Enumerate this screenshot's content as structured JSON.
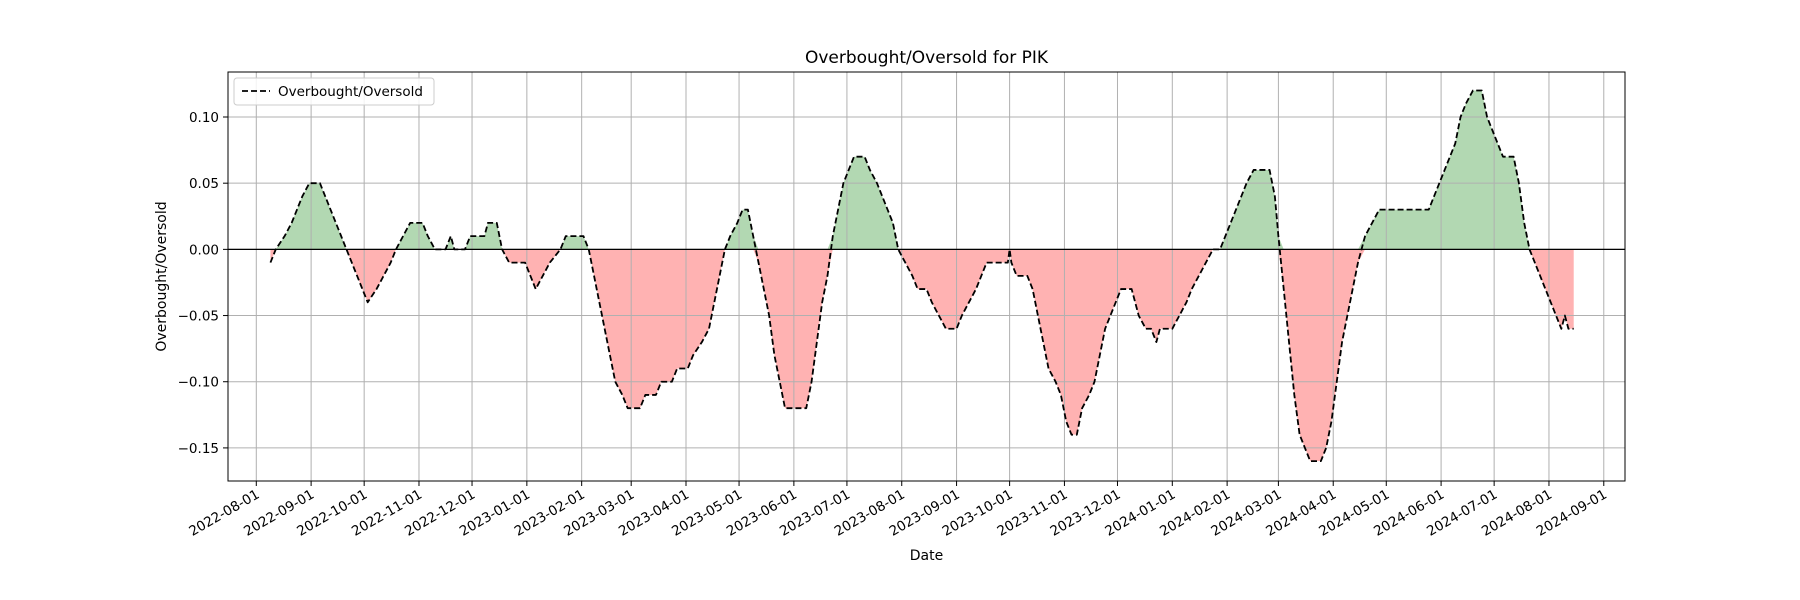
{
  "chart_data": {
    "type": "area",
    "title": "Overbought/Oversold for PIK",
    "xlabel": "Date",
    "ylabel": "Overbought/Oversold",
    "x_axis": "date",
    "xlim": [
      "2022-07-16",
      "2024-09-13"
    ],
    "ylim": [
      -0.175,
      0.134
    ],
    "grid": true,
    "legend_placement": "top-left",
    "x_ticks": [
      "2022-08-01",
      "2022-09-01",
      "2022-10-01",
      "2022-11-01",
      "2022-12-01",
      "2023-01-01",
      "2023-02-01",
      "2023-03-01",
      "2023-04-01",
      "2023-05-01",
      "2023-06-01",
      "2023-07-01",
      "2023-08-01",
      "2023-09-01",
      "2023-10-01",
      "2023-11-01",
      "2023-12-01",
      "2024-01-01",
      "2024-02-01",
      "2024-03-01",
      "2024-04-01",
      "2024-05-01",
      "2024-06-01",
      "2024-07-01",
      "2024-08-01",
      "2024-09-01"
    ],
    "y_ticks": [
      {
        "value": 0.1,
        "label": "0.10"
      },
      {
        "value": 0.05,
        "label": "0.05"
      },
      {
        "value": 0.0,
        "label": "0.00"
      },
      {
        "value": -0.05,
        "label": "−0.05"
      },
      {
        "value": -0.1,
        "label": "−0.10"
      },
      {
        "value": -0.15,
        "label": "−0.15"
      }
    ],
    "colors": {
      "line": "#000000",
      "positive_fill": "#b2d8b2",
      "negative_fill": "#ffb2b2",
      "grid": "#b0b0b0",
      "zero_line": "#000000"
    },
    "series": [
      {
        "name": "Overbought/Oversold",
        "style": "dashed",
        "points": [
          [
            "2022-08-09",
            -0.01
          ],
          [
            "2022-08-12",
            0.0
          ],
          [
            "2022-08-17",
            0.01
          ],
          [
            "2022-08-21",
            0.02
          ],
          [
            "2022-08-24",
            0.03
          ],
          [
            "2022-08-27",
            0.04
          ],
          [
            "2022-08-31",
            0.05
          ],
          [
            "2022-09-06",
            0.05
          ],
          [
            "2022-09-09",
            0.04
          ],
          [
            "2022-09-12",
            0.03
          ],
          [
            "2022-09-15",
            0.02
          ],
          [
            "2022-09-18",
            0.01
          ],
          [
            "2022-09-21",
            0.0
          ],
          [
            "2022-09-24",
            -0.01
          ],
          [
            "2022-09-27",
            -0.02
          ],
          [
            "2022-09-30",
            -0.03
          ],
          [
            "2022-10-03",
            -0.04
          ],
          [
            "2022-10-08",
            -0.03
          ],
          [
            "2022-10-12",
            -0.02
          ],
          [
            "2022-10-16",
            -0.01
          ],
          [
            "2022-10-19",
            0.0
          ],
          [
            "2022-10-23",
            0.01
          ],
          [
            "2022-10-27",
            0.02
          ],
          [
            "2022-11-03",
            0.02
          ],
          [
            "2022-11-06",
            0.01
          ],
          [
            "2022-11-10",
            0.0
          ],
          [
            "2022-11-16",
            0.0
          ],
          [
            "2022-11-19",
            0.01
          ],
          [
            "2022-11-21",
            0.0
          ],
          [
            "2022-11-27",
            0.0
          ],
          [
            "2022-11-30",
            0.01
          ],
          [
            "2022-12-08",
            0.01
          ],
          [
            "2022-12-10",
            0.02
          ],
          [
            "2022-12-15",
            0.02
          ],
          [
            "2022-12-18",
            0.0
          ],
          [
            "2022-12-22",
            -0.01
          ],
          [
            "2022-12-31",
            -0.01
          ],
          [
            "2023-01-03",
            -0.02
          ],
          [
            "2023-01-06",
            -0.03
          ],
          [
            "2023-01-10",
            -0.02
          ],
          [
            "2023-01-14",
            -0.01
          ],
          [
            "2023-01-20",
            0.0
          ],
          [
            "2023-01-23",
            0.01
          ],
          [
            "2023-02-02",
            0.01
          ],
          [
            "2023-02-05",
            0.0
          ],
          [
            "2023-02-08",
            -0.02
          ],
          [
            "2023-02-11",
            -0.04
          ],
          [
            "2023-02-14",
            -0.06
          ],
          [
            "2023-02-17",
            -0.08
          ],
          [
            "2023-02-20",
            -0.1
          ],
          [
            "2023-02-24",
            -0.11
          ],
          [
            "2023-02-27",
            -0.12
          ],
          [
            "2023-03-06",
            -0.12
          ],
          [
            "2023-03-09",
            -0.11
          ],
          [
            "2023-03-15",
            -0.11
          ],
          [
            "2023-03-18",
            -0.1
          ],
          [
            "2023-03-24",
            -0.1
          ],
          [
            "2023-03-27",
            -0.09
          ],
          [
            "2023-04-02",
            -0.09
          ],
          [
            "2023-04-05",
            -0.08
          ],
          [
            "2023-04-10",
            -0.07
          ],
          [
            "2023-04-14",
            -0.06
          ],
          [
            "2023-04-17",
            -0.04
          ],
          [
            "2023-04-20",
            -0.02
          ],
          [
            "2023-04-23",
            0.0
          ],
          [
            "2023-04-26",
            0.01
          ],
          [
            "2023-04-30",
            0.02
          ],
          [
            "2023-05-03",
            0.03
          ],
          [
            "2023-05-06",
            0.03
          ],
          [
            "2023-05-09",
            0.01
          ],
          [
            "2023-05-12",
            -0.01
          ],
          [
            "2023-05-15",
            -0.03
          ],
          [
            "2023-05-18",
            -0.05
          ],
          [
            "2023-05-21",
            -0.08
          ],
          [
            "2023-05-24",
            -0.1
          ],
          [
            "2023-05-27",
            -0.12
          ],
          [
            "2023-06-08",
            -0.12
          ],
          [
            "2023-06-11",
            -0.1
          ],
          [
            "2023-06-14",
            -0.07
          ],
          [
            "2023-06-17",
            -0.04
          ],
          [
            "2023-06-20",
            -0.02
          ],
          [
            "2023-06-23",
            0.01
          ],
          [
            "2023-06-26",
            0.03
          ],
          [
            "2023-06-29",
            0.05
          ],
          [
            "2023-07-02",
            0.06
          ],
          [
            "2023-07-05",
            0.07
          ],
          [
            "2023-07-11",
            0.07
          ],
          [
            "2023-07-14",
            0.06
          ],
          [
            "2023-07-18",
            0.05
          ],
          [
            "2023-07-21",
            0.04
          ],
          [
            "2023-07-24",
            0.03
          ],
          [
            "2023-07-27",
            0.02
          ],
          [
            "2023-07-30",
            0.0
          ],
          [
            "2023-08-03",
            -0.01
          ],
          [
            "2023-08-07",
            -0.02
          ],
          [
            "2023-08-10",
            -0.03
          ],
          [
            "2023-08-15",
            -0.03
          ],
          [
            "2023-08-18",
            -0.04
          ],
          [
            "2023-08-22",
            -0.05
          ],
          [
            "2023-08-26",
            -0.06
          ],
          [
            "2023-09-01",
            -0.06
          ],
          [
            "2023-09-04",
            -0.05
          ],
          [
            "2023-09-08",
            -0.04
          ],
          [
            "2023-09-12",
            -0.03
          ],
          [
            "2023-09-15",
            -0.02
          ],
          [
            "2023-09-18",
            -0.01
          ],
          [
            "2023-09-30",
            -0.01
          ],
          [
            "2023-10-01",
            0.0
          ],
          [
            "2023-10-02",
            -0.01
          ],
          [
            "2023-10-05",
            -0.02
          ],
          [
            "2023-10-11",
            -0.02
          ],
          [
            "2023-10-14",
            -0.03
          ],
          [
            "2023-10-17",
            -0.05
          ],
          [
            "2023-10-20",
            -0.07
          ],
          [
            "2023-10-23",
            -0.09
          ],
          [
            "2023-10-27",
            -0.1
          ],
          [
            "2023-10-30",
            -0.11
          ],
          [
            "2023-11-02",
            -0.13
          ],
          [
            "2023-11-05",
            -0.14
          ],
          [
            "2023-11-08",
            -0.14
          ],
          [
            "2023-11-11",
            -0.12
          ],
          [
            "2023-11-15",
            -0.11
          ],
          [
            "2023-11-18",
            -0.1
          ],
          [
            "2023-11-21",
            -0.08
          ],
          [
            "2023-11-24",
            -0.06
          ],
          [
            "2023-11-27",
            -0.05
          ],
          [
            "2023-11-30",
            -0.04
          ],
          [
            "2023-12-03",
            -0.03
          ],
          [
            "2023-12-09",
            -0.03
          ],
          [
            "2023-12-13",
            -0.05
          ],
          [
            "2023-12-17",
            -0.06
          ],
          [
            "2023-12-20",
            -0.06
          ],
          [
            "2023-12-23",
            -0.07
          ],
          [
            "2023-12-25",
            -0.06
          ],
          [
            "2024-01-01",
            -0.06
          ],
          [
            "2024-01-05",
            -0.05
          ],
          [
            "2024-01-09",
            -0.04
          ],
          [
            "2024-01-12",
            -0.03
          ],
          [
            "2024-01-16",
            -0.02
          ],
          [
            "2024-01-20",
            -0.01
          ],
          [
            "2024-01-24",
            0.0
          ],
          [
            "2024-01-28",
            0.0
          ],
          [
            "2024-01-31",
            0.01
          ],
          [
            "2024-02-03",
            0.02
          ],
          [
            "2024-02-06",
            0.03
          ],
          [
            "2024-02-09",
            0.04
          ],
          [
            "2024-02-12",
            0.05
          ],
          [
            "2024-02-16",
            0.06
          ],
          [
            "2024-02-25",
            0.06
          ],
          [
            "2024-02-28",
            0.04
          ],
          [
            "2024-03-01",
            0.01
          ],
          [
            "2024-03-04",
            -0.03
          ],
          [
            "2024-03-07",
            -0.07
          ],
          [
            "2024-03-10",
            -0.11
          ],
          [
            "2024-03-13",
            -0.14
          ],
          [
            "2024-03-16",
            -0.15
          ],
          [
            "2024-03-19",
            -0.16
          ],
          [
            "2024-03-25",
            -0.16
          ],
          [
            "2024-03-28",
            -0.15
          ],
          [
            "2024-03-31",
            -0.13
          ],
          [
            "2024-04-03",
            -0.1
          ],
          [
            "2024-04-06",
            -0.07
          ],
          [
            "2024-04-09",
            -0.05
          ],
          [
            "2024-04-12",
            -0.03
          ],
          [
            "2024-04-15",
            -0.01
          ],
          [
            "2024-04-19",
            0.01
          ],
          [
            "2024-04-23",
            0.02
          ],
          [
            "2024-04-27",
            0.03
          ],
          [
            "2024-05-25",
            0.03
          ],
          [
            "2024-05-28",
            0.04
          ],
          [
            "2024-05-31",
            0.05
          ],
          [
            "2024-06-03",
            0.06
          ],
          [
            "2024-06-06",
            0.07
          ],
          [
            "2024-06-09",
            0.08
          ],
          [
            "2024-06-12",
            0.1
          ],
          [
            "2024-06-15",
            0.11
          ],
          [
            "2024-06-19",
            0.12
          ],
          [
            "2024-06-24",
            0.12
          ],
          [
            "2024-06-27",
            0.1
          ],
          [
            "2024-06-30",
            0.09
          ],
          [
            "2024-07-03",
            0.08
          ],
          [
            "2024-07-06",
            0.07
          ],
          [
            "2024-07-12",
            0.07
          ],
          [
            "2024-07-15",
            0.05
          ],
          [
            "2024-07-18",
            0.02
          ],
          [
            "2024-07-21",
            0.0
          ],
          [
            "2024-07-24",
            -0.01
          ],
          [
            "2024-07-27",
            -0.02
          ],
          [
            "2024-07-30",
            -0.03
          ],
          [
            "2024-08-02",
            -0.04
          ],
          [
            "2024-08-05",
            -0.05
          ],
          [
            "2024-08-08",
            -0.06
          ],
          [
            "2024-08-10",
            -0.05
          ],
          [
            "2024-08-12",
            -0.06
          ],
          [
            "2024-08-15",
            -0.06
          ]
        ]
      }
    ]
  }
}
